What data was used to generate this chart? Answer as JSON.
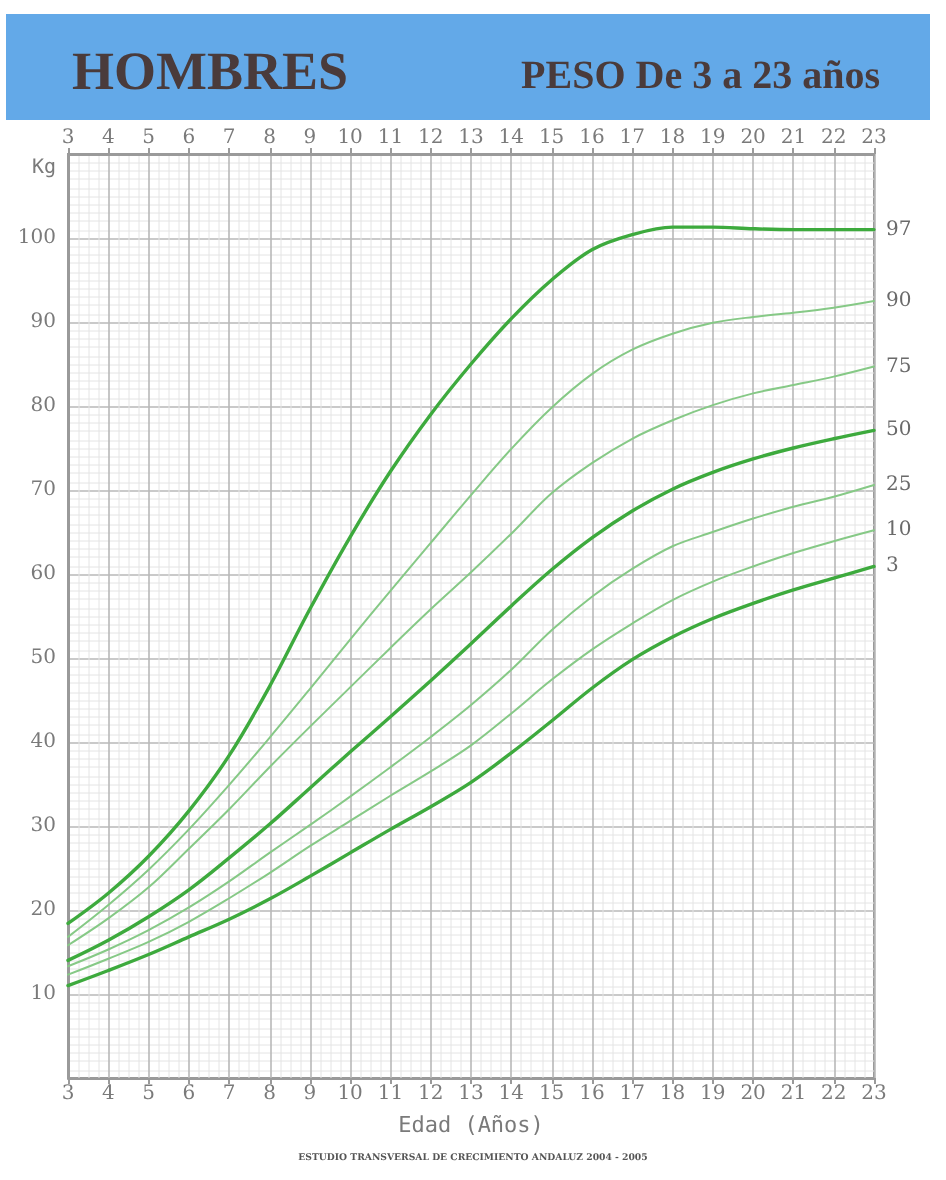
{
  "chart_data": {
    "type": "line",
    "title": "HOMBRES",
    "subtitle": "PESO De 3 a 23 años",
    "xlabel": "Edad (Años)",
    "ylabel": "Kg",
    "annotations": [
      "ESTUDIO TRANSVERSAL DE CRECIMIENTO ANDALUZ 2004 - 2005"
    ],
    "x": [
      3,
      4,
      5,
      6,
      7,
      8,
      9,
      10,
      11,
      12,
      13,
      14,
      15,
      16,
      17,
      18,
      19,
      20,
      21,
      22,
      23
    ],
    "series": [
      {
        "name": "97",
        "color": "#3daa3d",
        "values": [
          18.4,
          22,
          26.4,
          31.8,
          38.4,
          46.6,
          55.8,
          64.4,
          72.2,
          79,
          85,
          90.4,
          95,
          98.6,
          100.4,
          101.3,
          101.3,
          101.1,
          101,
          101,
          101
        ]
      },
      {
        "name": "90",
        "color": "#86c986",
        "values": [
          16.8,
          20.6,
          24.8,
          29.6,
          34.9,
          40.5,
          46.3,
          52.2,
          58,
          63.7,
          69.4,
          74.9,
          79.8,
          83.8,
          86.7,
          88.6,
          89.9,
          90.6,
          91.1,
          91.7,
          92.5
        ]
      },
      {
        "name": "75",
        "color": "#86c986",
        "values": [
          15.8,
          19,
          22.7,
          27.3,
          32,
          37,
          41.8,
          46.5,
          51.2,
          55.8,
          60.2,
          64.8,
          69.6,
          73.2,
          76.1,
          78.3,
          80.1,
          81.5,
          82.5,
          83.5,
          84.7
        ]
      },
      {
        "name": "50",
        "color": "#3daa3d",
        "values": [
          14,
          16.4,
          19.2,
          22.4,
          26.2,
          30.2,
          34.5,
          38.8,
          43,
          47.3,
          51.7,
          56.2,
          60.5,
          64.3,
          67.5,
          70.1,
          72.1,
          73.7,
          75,
          76.1,
          77.1
        ]
      },
      {
        "name": "25",
        "color": "#86c986",
        "values": [
          13.3,
          15.3,
          17.6,
          20.3,
          23.4,
          26.8,
          30.1,
          33.5,
          37,
          40.6,
          44.4,
          48.6,
          53.3,
          57.3,
          60.6,
          63.3,
          65,
          66.6,
          68,
          69.2,
          70.6
        ]
      },
      {
        "name": "10",
        "color": "#86c986",
        "values": [
          12.3,
          14.2,
          16.2,
          18.6,
          21.4,
          24.4,
          27.6,
          30.6,
          33.6,
          36.5,
          39.6,
          43.4,
          47.4,
          51,
          54.1,
          56.9,
          59.1,
          60.9,
          62.5,
          63.9,
          65.2
        ]
      },
      {
        "name": "3",
        "color": "#3daa3d",
        "values": [
          11,
          12.8,
          14.7,
          16.8,
          18.9,
          21.3,
          24,
          26.8,
          29.6,
          32.3,
          35.2,
          38.7,
          42.5,
          46.4,
          49.8,
          52.5,
          54.7,
          56.5,
          58.1,
          59.5,
          60.9
        ]
      }
    ],
    "xlim": [
      3,
      23
    ],
    "xticks": [
      3,
      4,
      5,
      6,
      7,
      8,
      9,
      10,
      11,
      12,
      13,
      14,
      15,
      16,
      17,
      18,
      19,
      20,
      21,
      22,
      23
    ],
    "x2lim": [
      3,
      23
    ],
    "x2ticks": [
      3,
      4,
      5,
      6,
      7,
      8,
      9,
      10,
      11,
      12,
      13,
      14,
      15,
      16,
      17,
      18,
      19,
      20,
      21,
      22,
      23
    ],
    "ylim": [
      0,
      110
    ],
    "yticks": [
      10,
      20,
      30,
      40,
      50,
      60,
      70,
      80,
      90,
      100
    ],
    "grid": true,
    "marker": "none",
    "line_style": "solid"
  }
}
